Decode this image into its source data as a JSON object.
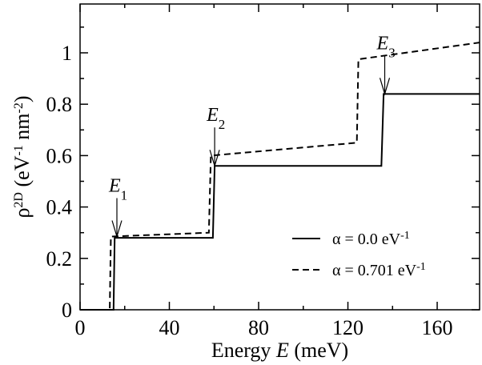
{
  "chart_data": {
    "type": "line",
    "xlabel": [
      {
        "text": "Energy "
      },
      {
        "italic": "E"
      },
      {
        "text": " (meV)"
      }
    ],
    "ylabel": [
      {
        "text": "ρ"
      },
      {
        "sup": "2D"
      },
      {
        "text": " (eV"
      },
      {
        "sup": "-1"
      },
      {
        "text": " nm"
      },
      {
        "sup": "-2"
      },
      {
        "text": ")"
      }
    ],
    "xlim": [
      0,
      179
    ],
    "ylim": [
      0,
      1.19
    ],
    "xticks": [
      0,
      40,
      80,
      120,
      160
    ],
    "yticks": [
      0,
      0.2,
      0.4,
      0.6,
      0.8,
      1
    ],
    "xminorticks": [
      20,
      60,
      100,
      140
    ],
    "yminorticks": [
      0.1,
      0.3,
      0.5,
      0.7,
      0.9,
      1.1
    ],
    "legend": "lower right",
    "series": [
      {
        "name": "α = 0.0 eV",
        "name_superscript": "-1",
        "color": "#000000",
        "dash": "solid",
        "x": [
          0,
          15,
          15.5,
          59.5,
          60.3,
          135,
          136,
          179
        ],
        "values": [
          0,
          0,
          0.28,
          0.28,
          0.56,
          0.56,
          0.84,
          0.84
        ]
      },
      {
        "name": "α = 0.701 eV",
        "name_superscript": "-1",
        "color": "#000000",
        "dash": "dashed",
        "x": [
          0,
          13.3,
          13.8,
          57.7,
          58.6,
          124,
          124.7,
          179
        ],
        "values": [
          0,
          0,
          0.285,
          0.3,
          0.6,
          0.65,
          0.975,
          1.04
        ]
      }
    ],
    "annotations": [
      {
        "text": "E",
        "subscript": "1",
        "x": 16.5,
        "y": 0.285
      },
      {
        "text": "E",
        "subscript": "2",
        "x": 60.3,
        "y": 0.56
      },
      {
        "text": "E",
        "subscript": "3",
        "x": 136.5,
        "y": 0.84
      }
    ]
  }
}
